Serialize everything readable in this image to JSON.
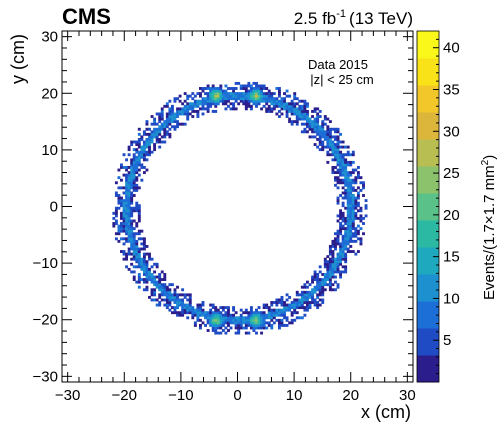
{
  "experiment": "CMS",
  "luminosity": {
    "value": "2.5 fb",
    "exponent": "-1",
    "energy": "(13 TeV)"
  },
  "legend": {
    "line1": "Data 2015",
    "line2": "|z| < 25 cm"
  },
  "chart_data": {
    "type": "heatmap",
    "title": "",
    "xlabel": "x (cm)",
    "ylabel": "y (cm)",
    "zlabel": "Events/(1.7×1.7 mm²)",
    "zlabel_parts": [
      "Events/(1.7",
      "×",
      "1.7 mm",
      "2",
      ")"
    ],
    "xlim": [
      -31,
      31
    ],
    "ylim": [
      -31,
      31
    ],
    "zlim": [
      0,
      42
    ],
    "x_ticks": [
      -30,
      -20,
      -10,
      0,
      10,
      20,
      30
    ],
    "y_ticks": [
      -30,
      -20,
      -10,
      0,
      10,
      20,
      30
    ],
    "x_tick_labels": [
      "−30",
      "−20",
      "−10",
      "0",
      "10",
      "20",
      "30"
    ],
    "y_tick_labels": [
      "−30",
      "−20",
      "−10",
      "0",
      "10",
      "20",
      "30"
    ],
    "z_ticks": [
      5,
      10,
      15,
      20,
      25,
      30,
      35,
      40
    ],
    "z_tick_labels": [
      "5",
      "10",
      "15",
      "20",
      "25",
      "30",
      "35",
      "40"
    ],
    "colormap": [
      "#2b1e8c",
      "#1f4bc4",
      "#1c6fd6",
      "#1d90d0",
      "#1fa9bf",
      "#2bb9a3",
      "#5ac188",
      "#8cc26c",
      "#b8be52",
      "#dcb63a",
      "#f2c72a",
      "#f9e318",
      "#faf81a"
    ],
    "structures": [
      {
        "name": "inner ring",
        "shape": "circle",
        "center": [
          0,
          0
        ],
        "radius_min": 17.5,
        "radius_max": 19.5,
        "typical_density": 5
      },
      {
        "name": "outer ring",
        "shape": "circle",
        "center": [
          0,
          0
        ],
        "radius_min": 19.5,
        "radius_max": 22.5,
        "typical_density": 6
      },
      {
        "name": "dense band",
        "shape": "circle",
        "center": [
          0,
          0
        ],
        "radius": 19.8,
        "typical_density": 12
      },
      {
        "name": "hot spot top left",
        "shape": "spot",
        "center": [
          -4,
          19.8
        ],
        "peak_density": 30
      },
      {
        "name": "hot spot top right",
        "shape": "spot",
        "center": [
          3,
          19.8
        ],
        "peak_density": 28
      },
      {
        "name": "hot spot bottom left",
        "shape": "spot",
        "center": [
          -4,
          -19.8
        ],
        "peak_density": 28
      },
      {
        "name": "hot spot bottom right",
        "shape": "spot",
        "center": [
          3,
          -19.8
        ],
        "peak_density": 26
      }
    ]
  }
}
